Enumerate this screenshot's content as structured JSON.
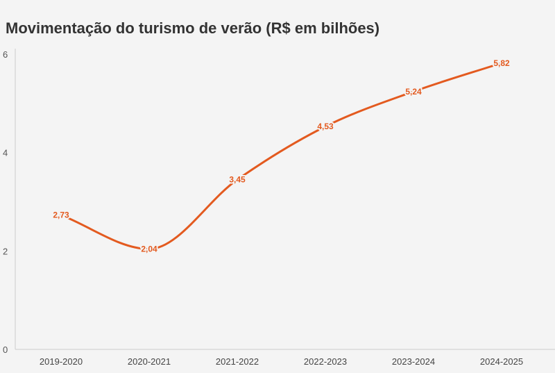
{
  "chart_data": {
    "type": "line",
    "title": "Movimentação do turismo de verão (R$ em bilhões)",
    "categories": [
      "2019-2020",
      "2020-2021",
      "2021-2022",
      "2022-2023",
      "2023-2024",
      "2024-2025"
    ],
    "series": [
      {
        "values": [
          2.73,
          2.04,
          3.45,
          4.53,
          5.24,
          5.82
        ],
        "labels": [
          "2,73",
          "2,04",
          "3,45",
          "4,53",
          "5,24",
          "5,82"
        ],
        "color": "#e35a1f"
      }
    ],
    "yticks": [
      0,
      2,
      4,
      6
    ],
    "ylim": [
      0,
      6
    ],
    "grid": false,
    "legend": "none",
    "background": "#f4f4f4",
    "axis_color": "#cccccc"
  }
}
